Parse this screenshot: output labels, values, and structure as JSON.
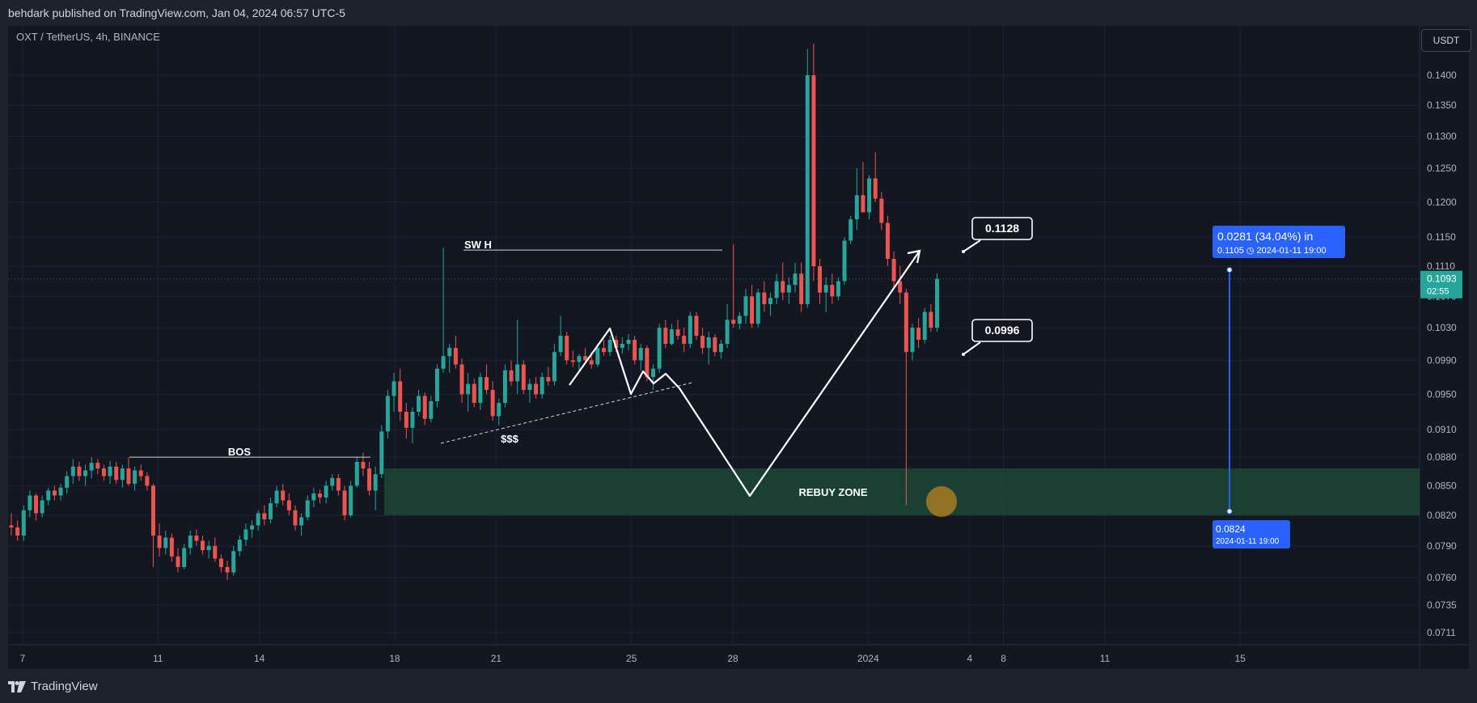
{
  "header": {
    "published": "behdark published on TradingView.com, Jan 04, 2024 06:57 UTC-5"
  },
  "legend": {
    "symbol": "OXT / TetherUS, 4h, BINANCE"
  },
  "currency_button": "USDT",
  "footer": {
    "brand": "TradingView"
  },
  "colors": {
    "background": "#131722",
    "up": "#26a69a",
    "down": "#ef5350",
    "zone": "#1e4d3a",
    "measure": "#2962ff",
    "price_label": "#26a69a"
  },
  "chart_data": {
    "type": "candlestick",
    "y_axis": {
      "ticks": [
        "0.1400",
        "0.1350",
        "0.1300",
        "0.1250",
        "0.1200",
        "0.1150",
        "0.1110",
        "0.1070",
        "0.1030",
        "0.0990",
        "0.0950",
        "0.0910",
        "0.0880",
        "0.0850",
        "0.0820",
        "0.0790",
        "0.0760",
        "0.0735",
        "0.0711"
      ],
      "scale": "log"
    },
    "x_axis": {
      "ticks": [
        "7",
        "11",
        "14",
        "18",
        "21",
        "25",
        "28",
        "2024",
        "4",
        "8",
        "11",
        "15"
      ]
    },
    "current_price": {
      "value": "0.1093",
      "countdown": "02:55"
    },
    "annotations": {
      "bos": "BOS",
      "swing_high": "SW H",
      "liquidity": "$$$",
      "rebuy_zone": "REBUY ZONE",
      "callout_high": "0.1128",
      "callout_low": "0.0996"
    },
    "measure": {
      "top_line1": "0.0281 (34.04%) in",
      "top_line2": "0.1105 ◷ 2024-01-11  19:00",
      "bottom_line1": "0.0824",
      "bottom_line2": "2024-01-11 19:00"
    },
    "zone": {
      "low": 0.082,
      "high": 0.0868
    },
    "candles_ohlc": [
      [
        0.081,
        0.0822,
        0.08,
        0.0808
      ],
      [
        0.0808,
        0.0815,
        0.0795,
        0.08
      ],
      [
        0.08,
        0.083,
        0.0795,
        0.0825
      ],
      [
        0.0825,
        0.0845,
        0.0818,
        0.084
      ],
      [
        0.084,
        0.0842,
        0.0815,
        0.0822
      ],
      [
        0.0822,
        0.084,
        0.0818,
        0.0835
      ],
      [
        0.0835,
        0.0848,
        0.083,
        0.0845
      ],
      [
        0.0845,
        0.085,
        0.0835,
        0.084
      ],
      [
        0.084,
        0.0852,
        0.0835,
        0.0848
      ],
      [
        0.0848,
        0.0865,
        0.0842,
        0.086
      ],
      [
        0.086,
        0.0878,
        0.0852,
        0.087
      ],
      [
        0.087,
        0.0875,
        0.0855,
        0.086
      ],
      [
        0.086,
        0.0872,
        0.085,
        0.0866
      ],
      [
        0.0866,
        0.088,
        0.0858,
        0.0874
      ],
      [
        0.0874,
        0.0878,
        0.0862,
        0.0868
      ],
      [
        0.0868,
        0.0872,
        0.0855,
        0.086
      ],
      [
        0.086,
        0.0876,
        0.0852,
        0.087
      ],
      [
        0.087,
        0.0875,
        0.0852,
        0.0856
      ],
      [
        0.0856,
        0.0872,
        0.0848,
        0.0868
      ],
      [
        0.0868,
        0.088,
        0.085,
        0.0852
      ],
      [
        0.0852,
        0.087,
        0.0845,
        0.0866
      ],
      [
        0.0866,
        0.0872,
        0.0855,
        0.086
      ],
      [
        0.086,
        0.0864,
        0.0845,
        0.085
      ],
      [
        0.085,
        0.0852,
        0.077,
        0.08
      ],
      [
        0.08,
        0.0812,
        0.078,
        0.0788
      ],
      [
        0.0788,
        0.0805,
        0.0782,
        0.0798
      ],
      [
        0.0798,
        0.0802,
        0.0775,
        0.078
      ],
      [
        0.078,
        0.0788,
        0.0765,
        0.077
      ],
      [
        0.077,
        0.0792,
        0.0768,
        0.0788
      ],
      [
        0.0788,
        0.0805,
        0.0782,
        0.08
      ],
      [
        0.08,
        0.0806,
        0.079,
        0.0795
      ],
      [
        0.0795,
        0.08,
        0.0782,
        0.0786
      ],
      [
        0.0786,
        0.0795,
        0.0778,
        0.079
      ],
      [
        0.079,
        0.0798,
        0.0775,
        0.0778
      ],
      [
        0.0778,
        0.0782,
        0.0765,
        0.077
      ],
      [
        0.077,
        0.0776,
        0.0758,
        0.0765
      ],
      [
        0.0765,
        0.079,
        0.0762,
        0.0785
      ],
      [
        0.0785,
        0.08,
        0.078,
        0.0796
      ],
      [
        0.0796,
        0.0812,
        0.079,
        0.0806
      ],
      [
        0.0806,
        0.0815,
        0.0798,
        0.081
      ],
      [
        0.081,
        0.0825,
        0.0805,
        0.0822
      ],
      [
        0.0822,
        0.083,
        0.081,
        0.0816
      ],
      [
        0.0816,
        0.0838,
        0.0812,
        0.0832
      ],
      [
        0.0832,
        0.085,
        0.0828,
        0.0845
      ],
      [
        0.0845,
        0.0852,
        0.083,
        0.0835
      ],
      [
        0.0835,
        0.0842,
        0.082,
        0.0825
      ],
      [
        0.0825,
        0.083,
        0.0805,
        0.081
      ],
      [
        0.081,
        0.0822,
        0.08,
        0.0818
      ],
      [
        0.0818,
        0.084,
        0.0815,
        0.0835
      ],
      [
        0.0835,
        0.0848,
        0.0828,
        0.0842
      ],
      [
        0.0842,
        0.0846,
        0.0832,
        0.0838
      ],
      [
        0.0838,
        0.0855,
        0.0832,
        0.085
      ],
      [
        0.085,
        0.0862,
        0.0845,
        0.0858
      ],
      [
        0.0858,
        0.0862,
        0.084,
        0.0845
      ],
      [
        0.0845,
        0.085,
        0.0815,
        0.082
      ],
      [
        0.082,
        0.0855,
        0.0818,
        0.085
      ],
      [
        0.085,
        0.088,
        0.0848,
        0.0875
      ],
      [
        0.0875,
        0.0885,
        0.086,
        0.0868
      ],
      [
        0.0868,
        0.0875,
        0.084,
        0.0845
      ],
      [
        0.0845,
        0.087,
        0.0825,
        0.0862
      ],
      [
        0.0862,
        0.0915,
        0.0858,
        0.0908
      ],
      [
        0.0908,
        0.0955,
        0.09,
        0.0948
      ],
      [
        0.0948,
        0.0975,
        0.093,
        0.0965
      ],
      [
        0.0965,
        0.098,
        0.092,
        0.093
      ],
      [
        0.093,
        0.094,
        0.09,
        0.0912
      ],
      [
        0.0912,
        0.0935,
        0.0895,
        0.093
      ],
      [
        0.093,
        0.0955,
        0.0925,
        0.0948
      ],
      [
        0.0948,
        0.0952,
        0.0915,
        0.0922
      ],
      [
        0.0922,
        0.0948,
        0.0918,
        0.0942
      ],
      [
        0.0942,
        0.0985,
        0.0935,
        0.098
      ],
      [
        0.098,
        0.1135,
        0.0975,
        0.0995
      ],
      [
        0.0995,
        0.101,
        0.0975,
        0.1005
      ],
      [
        0.1005,
        0.102,
        0.098,
        0.0985
      ],
      [
        0.0985,
        0.0992,
        0.094,
        0.095
      ],
      [
        0.095,
        0.0975,
        0.093,
        0.0962
      ],
      [
        0.0962,
        0.0968,
        0.0935,
        0.094
      ],
      [
        0.094,
        0.0975,
        0.0932,
        0.097
      ],
      [
        0.097,
        0.0985,
        0.095,
        0.0955
      ],
      [
        0.0955,
        0.0965,
        0.092,
        0.0925
      ],
      [
        0.0925,
        0.0945,
        0.0915,
        0.094
      ],
      [
        0.094,
        0.0985,
        0.0935,
        0.0978
      ],
      [
        0.0978,
        0.099,
        0.096,
        0.0965
      ],
      [
        0.0965,
        0.104,
        0.095,
        0.0985
      ],
      [
        0.0985,
        0.099,
        0.095,
        0.0955
      ],
      [
        0.0955,
        0.0968,
        0.094,
        0.0962
      ],
      [
        0.0962,
        0.097,
        0.0945,
        0.095
      ],
      [
        0.095,
        0.0975,
        0.0945,
        0.097
      ],
      [
        0.097,
        0.0982,
        0.096,
        0.0965
      ],
      [
        0.0965,
        0.101,
        0.096,
        0.1
      ],
      [
        0.1,
        0.1045,
        0.0995,
        0.102
      ],
      [
        0.102,
        0.1025,
        0.0985,
        0.099
      ],
      [
        0.099,
        0.1002,
        0.0982,
        0.0988
      ],
      [
        0.0988,
        0.0998,
        0.0975,
        0.0995
      ],
      [
        0.0995,
        0.1005,
        0.0985,
        0.099
      ],
      [
        0.099,
        0.1,
        0.098,
        0.0985
      ],
      [
        0.0985,
        0.101,
        0.0982,
        0.1005
      ],
      [
        0.1005,
        0.1015,
        0.0995,
        0.1
      ],
      [
        0.1,
        0.102,
        0.0995,
        0.1015
      ],
      [
        0.1015,
        0.102,
        0.1,
        0.1005
      ],
      [
        0.1005,
        0.1018,
        0.0998,
        0.101
      ],
      [
        0.101,
        0.1022,
        0.1002,
        0.1015
      ],
      [
        0.1015,
        0.102,
        0.0985,
        0.099
      ],
      [
        0.099,
        0.101,
        0.0978,
        0.1005
      ],
      [
        0.1005,
        0.1008,
        0.0965,
        0.097
      ],
      [
        0.097,
        0.0985,
        0.0955,
        0.098
      ],
      [
        0.098,
        0.1035,
        0.0975,
        0.103
      ],
      [
        0.103,
        0.104,
        0.1005,
        0.101
      ],
      [
        0.101,
        0.1035,
        0.1008,
        0.1028
      ],
      [
        0.1028,
        0.104,
        0.1015,
        0.102
      ],
      [
        0.102,
        0.103,
        0.1,
        0.101
      ],
      [
        0.101,
        0.105,
        0.1005,
        0.1045
      ],
      [
        0.1045,
        0.105,
        0.1015,
        0.102
      ],
      [
        0.102,
        0.103,
        0.0998,
        0.1005
      ],
      [
        0.1005,
        0.1025,
        0.0985,
        0.1018
      ],
      [
        0.1018,
        0.1022,
        0.0995,
        0.1
      ],
      [
        0.1,
        0.1015,
        0.0992,
        0.101
      ],
      [
        0.101,
        0.106,
        0.1005,
        0.104
      ],
      [
        0.104,
        0.114,
        0.103,
        0.1035
      ],
      [
        0.1035,
        0.105,
        0.1028,
        0.1045
      ],
      [
        0.1045,
        0.108,
        0.1035,
        0.107
      ],
      [
        0.107,
        0.1085,
        0.103,
        0.1035
      ],
      [
        0.1035,
        0.108,
        0.103,
        0.1075
      ],
      [
        0.1075,
        0.109,
        0.105,
        0.106
      ],
      [
        0.106,
        0.1075,
        0.1045,
        0.1068
      ],
      [
        0.1068,
        0.11,
        0.106,
        0.109
      ],
      [
        0.109,
        0.1115,
        0.1065,
        0.1075
      ],
      [
        0.1075,
        0.1095,
        0.106,
        0.1085
      ],
      [
        0.1085,
        0.1115,
        0.1075,
        0.11
      ],
      [
        0.11,
        0.1115,
        0.105,
        0.106
      ],
      [
        0.106,
        0.1445,
        0.1055,
        0.14
      ],
      [
        0.14,
        0.1455,
        0.109,
        0.111
      ],
      [
        0.111,
        0.112,
        0.106,
        0.1075
      ],
      [
        0.1075,
        0.1095,
        0.105,
        0.1085
      ],
      [
        0.1085,
        0.11,
        0.106,
        0.107
      ],
      [
        0.107,
        0.1095,
        0.1065,
        0.109
      ],
      [
        0.109,
        0.115,
        0.1085,
        0.1145
      ],
      [
        0.1145,
        0.118,
        0.114,
        0.1175
      ],
      [
        0.1175,
        0.125,
        0.116,
        0.121
      ],
      [
        0.121,
        0.126,
        0.1195,
        0.1185
      ],
      [
        0.1185,
        0.124,
        0.1175,
        0.1235
      ],
      [
        0.1235,
        0.1275,
        0.12,
        0.1205
      ],
      [
        0.1205,
        0.1215,
        0.116,
        0.117
      ],
      [
        0.117,
        0.118,
        0.111,
        0.112
      ],
      [
        0.112,
        0.113,
        0.108,
        0.109
      ],
      [
        0.109,
        0.111,
        0.106,
        0.1075
      ],
      [
        0.1075,
        0.108,
        0.083,
        0.1
      ],
      [
        0.1,
        0.1035,
        0.099,
        0.103
      ],
      [
        0.103,
        0.1042,
        0.1005,
        0.1015
      ],
      [
        0.1015,
        0.1055,
        0.101,
        0.105
      ],
      [
        0.105,
        0.106,
        0.1025,
        0.103
      ],
      [
        0.103,
        0.11,
        0.1025,
        0.1093
      ]
    ]
  }
}
